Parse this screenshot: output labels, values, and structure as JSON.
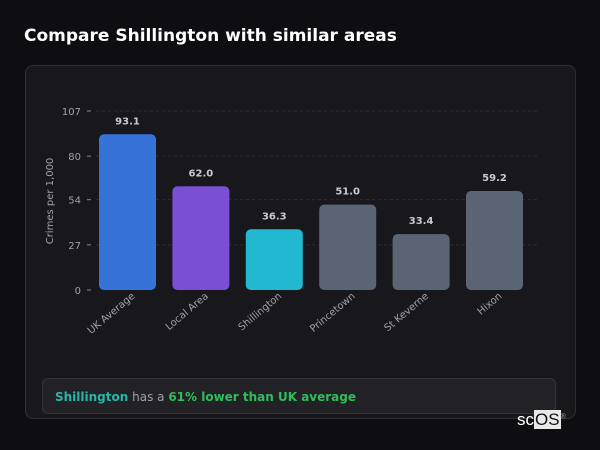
{
  "title": "Compare Shillington with similar areas",
  "chart_data": {
    "type": "bar",
    "categories": [
      "UK Average",
      "Local Area",
      "Shillington",
      "Princetown",
      "St Keverne",
      "Hixon"
    ],
    "values": [
      93.1,
      62.0,
      36.3,
      51.0,
      33.4,
      59.2
    ],
    "value_labels": [
      "93.1",
      "62.0",
      "36.3",
      "51.0",
      "33.4",
      "59.2"
    ],
    "colors": [
      "#3673d9",
      "#7a4fd3",
      "#22b8d0",
      "#5a6475",
      "#5a6475",
      "#5a6475"
    ],
    "ylabel": "Crimes per 1,000",
    "xlabel": "",
    "ylim": [
      0,
      107
    ],
    "yticks": [
      0,
      27,
      54,
      80,
      107
    ],
    "grid": true
  },
  "summary": {
    "area": "Shillington",
    "middle": " has a ",
    "comparison": "61% lower than UK average"
  },
  "logo": {
    "sc": "sc",
    "os": "OS",
    "mark": "®"
  }
}
